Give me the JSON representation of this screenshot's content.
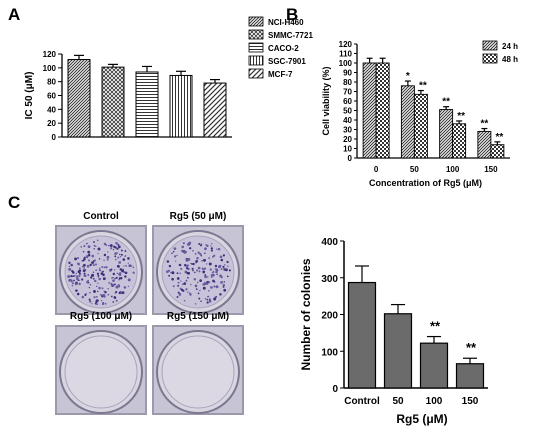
{
  "panels": {
    "a": "A",
    "b": "B",
    "c": "C"
  },
  "colors": {
    "bar_dark": "#6b6b6b",
    "axis": "#000000",
    "photo_bg": "#b7b4c8"
  },
  "chart_data": [
    {
      "id": "A",
      "type": "bar",
      "ylabel": "IC 50 (μM)",
      "ylim": [
        0,
        120
      ],
      "yticks": [
        0,
        20,
        40,
        60,
        80,
        100,
        120
      ],
      "series": [
        {
          "name": "NCI-H460",
          "value": 112,
          "error": 6,
          "pattern": "diag-dense"
        },
        {
          "name": "SMMC-7721",
          "value": 101,
          "error": 4,
          "pattern": "cross"
        },
        {
          "name": "CACO-2",
          "value": 94,
          "error": 8,
          "pattern": "horizontal"
        },
        {
          "name": "SGC-7901",
          "value": 89,
          "error": 6,
          "pattern": "vertical"
        },
        {
          "name": "MCF-7",
          "value": 78,
          "error": 5,
          "pattern": "diag-wide"
        }
      ],
      "legend_position": "right"
    },
    {
      "id": "B",
      "type": "bar",
      "ylabel": "Cell viability (%)",
      "xlabel": "Concentration of Rg5 (μM)",
      "ylim": [
        0,
        120
      ],
      "yticks": [
        0,
        10,
        20,
        30,
        40,
        50,
        60,
        70,
        80,
        90,
        100,
        110,
        120
      ],
      "categories": [
        "0",
        "50",
        "100",
        "150"
      ],
      "series": [
        {
          "name": "24 h",
          "values": [
            100,
            76,
            51,
            28
          ],
          "errors": [
            5,
            5,
            3,
            3
          ],
          "marks": [
            "",
            "*",
            "**",
            "**"
          ],
          "pattern": "diag-dense"
        },
        {
          "name": "48 h",
          "values": [
            100,
            67,
            36,
            14
          ],
          "errors": [
            5,
            4,
            3,
            3
          ],
          "marks": [
            "",
            "**",
            "**",
            "**"
          ],
          "pattern": "check"
        }
      ],
      "legend_position": "top-right"
    },
    {
      "id": "C",
      "type": "bar",
      "ylabel": "Number of colonies",
      "xlabel": "Rg5 (μM)",
      "ylim": [
        0,
        400
      ],
      "yticks": [
        0,
        100,
        200,
        300,
        400
      ],
      "categories": [
        "Control",
        "50",
        "100",
        "150"
      ],
      "values": [
        287,
        202,
        122,
        66
      ],
      "errors": [
        45,
        25,
        18,
        15
      ],
      "marks": [
        "",
        "",
        "**",
        "**"
      ]
    }
  ],
  "photos": [
    {
      "label": "Control",
      "colony_density": 0.9
    },
    {
      "label": "Rg5 (50 μM)",
      "colony_density": 0.7
    },
    {
      "label": "Rg5 (100 μM)",
      "colony_density": 0.0
    },
    {
      "label": "Rg5 (150 μM)",
      "colony_density": 0.0
    }
  ]
}
